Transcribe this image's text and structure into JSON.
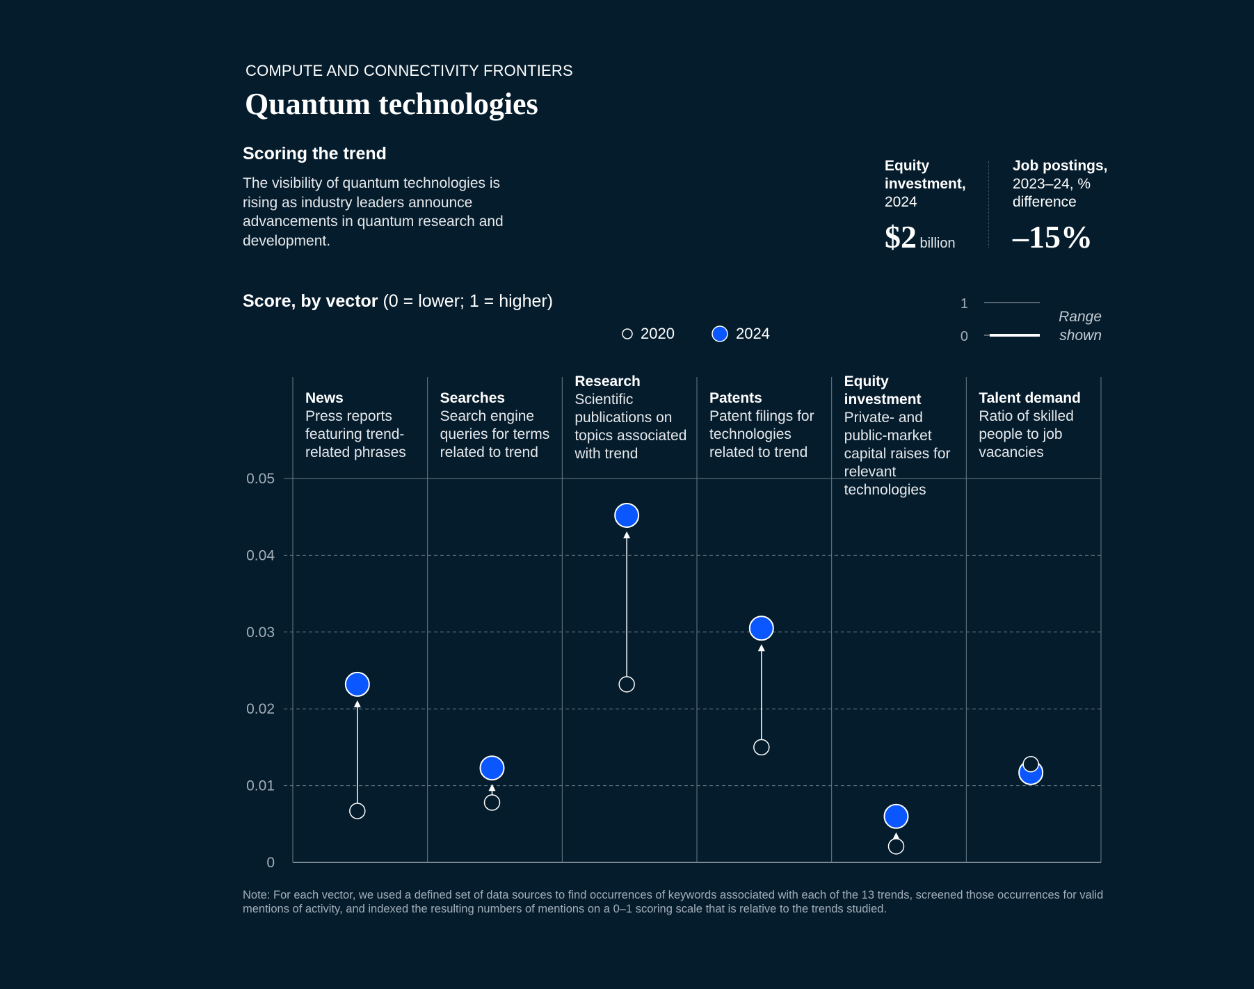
{
  "header": {
    "eyebrow": "COMPUTE AND CONNECTIVITY FRONTIERS",
    "title": "Quantum technologies"
  },
  "intro": {
    "subhead": "Scoring the trend",
    "body": "The visibility of quantum technologies is rising as industry leaders announce advancements in quantum research and development."
  },
  "kpis": [
    {
      "label_bold": "Equity investment,",
      "label_rest": "2024",
      "value": "$2",
      "unit": "billion"
    },
    {
      "label_bold": "Job postings,",
      "label_rest": "2023–24, % difference",
      "value": "–15%",
      "unit": ""
    }
  ],
  "score": {
    "title_bold": "Score, by vector",
    "title_rest": " (0 = lower; 1 = higher)"
  },
  "legend": {
    "y2020": "2020",
    "y2024": "2024"
  },
  "range_shown": {
    "top_label": "1",
    "bottom_label": "0",
    "text_line1": "Range",
    "text_line2": "shown"
  },
  "colors": {
    "background": "#051c2c",
    "accent_2024": "#0a56ff",
    "marker_2020_stroke": "#ffffff",
    "grid": "#6b7c89"
  },
  "chart_data": {
    "type": "dot_change",
    "ylim": [
      0,
      0.05
    ],
    "yticks": [
      0,
      0.01,
      0.02,
      0.03,
      0.04,
      0.05
    ],
    "ytick_labels": [
      "0",
      "0.01",
      "0.02",
      "0.03",
      "0.04",
      "0.05"
    ],
    "categories": [
      {
        "name": "News",
        "desc": "Press reports featuring trend-related phrases",
        "v2020": 0.0067,
        "v2024": 0.0232
      },
      {
        "name": "Searches",
        "desc": "Search engine queries for terms related to trend",
        "v2020": 0.0078,
        "v2024": 0.0123
      },
      {
        "name": "Research",
        "desc": "Scientific publications on topics associated with trend",
        "v2020": 0.0232,
        "v2024": 0.0452
      },
      {
        "name": "Patents",
        "desc": "Patent filings for technologies related to trend",
        "v2020": 0.015,
        "v2024": 0.0305
      },
      {
        "name": "Equity investment",
        "desc": "Private- and public-market capital raises for relevant technologies",
        "v2020": 0.0021,
        "v2024": 0.006
      },
      {
        "name": "Talent demand",
        "desc": "Ratio of skilled people to job vacancies",
        "v2020": 0.0128,
        "v2024": 0.0117
      }
    ]
  },
  "note": "Note: For each vector, we used a defined set of data sources to find occurrences of keywords associated with each of the 13 trends, screened those occurrences for valid mentions of activity, and indexed the resulting numbers of mentions on a 0–1 scoring scale that is relative to the trends studied."
}
